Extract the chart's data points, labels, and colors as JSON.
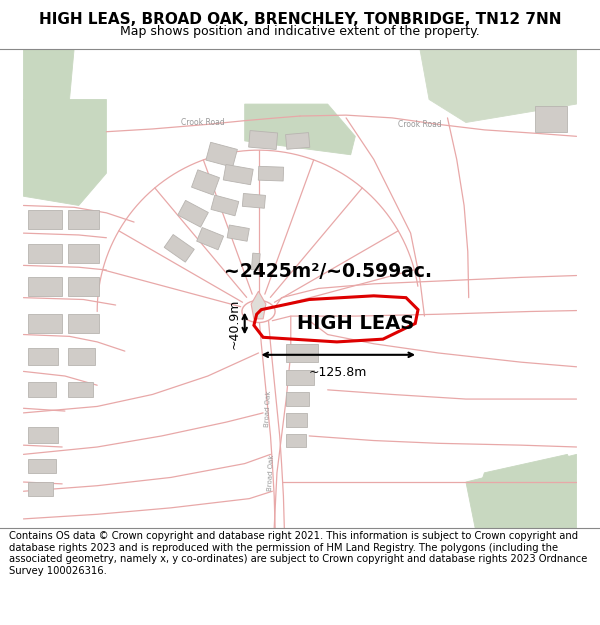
{
  "title_line1": "HIGH LEAS, BROAD OAK, BRENCHLEY, TONBRIDGE, TN12 7NN",
  "title_line2": "Map shows position and indicative extent of the property.",
  "footer_text": "Contains OS data © Crown copyright and database right 2021. This information is subject to Crown copyright and database rights 2023 and is reproduced with the permission of HM Land Registry. The polygons (including the associated geometry, namely x, y co-ordinates) are subject to Crown copyright and database rights 2023 Ordnance Survey 100026316.",
  "property_name": "HIGH LEAS",
  "area_text": "~2425m²/~0.599ac.",
  "dim_width": "~125.8m",
  "dim_height": "~40.9m",
  "map_bg": "#ffffff",
  "road_color": "#e8a8a8",
  "green_color": "#c8d8c0",
  "building_color": "#d0ccc8",
  "building_edge": "#b8b4b0",
  "property_edge": "#dd0000",
  "property_lw": 2.2,
  "title_fontsize": 11,
  "subtitle_fontsize": 9,
  "footer_fontsize": 7.2,
  "crook_road_label": "Crook Road",
  "broad_oak_label": "Broad Oak"
}
